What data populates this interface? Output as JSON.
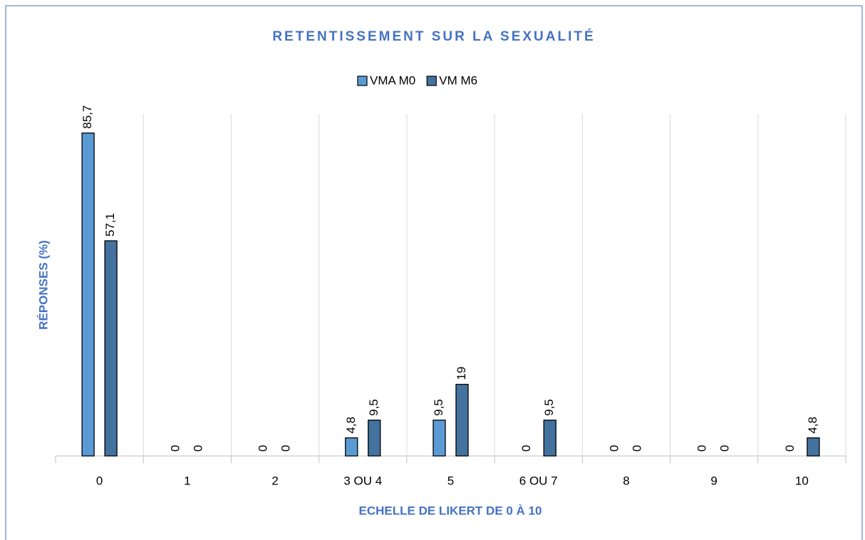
{
  "chart_data": {
    "type": "bar",
    "title": "RETENTISSEMENT SUR LA SEXUALITÉ",
    "x_label": "ECHELLE DE LIKERT  DE 0 À 10",
    "y_label": "RÉPONSES (%)",
    "categories": [
      "0",
      "1",
      "2",
      "3 OU 4",
      "5",
      "6 OU 7",
      "8",
      "9",
      "10"
    ],
    "series": [
      {
        "name": "VMA M0",
        "color": "#5b9bd5",
        "values": [
          85.7,
          0,
          0,
          4.8,
          9.5,
          0,
          0,
          0,
          0
        ],
        "value_labels": [
          "85,7",
          "0",
          "0",
          "4,8",
          "9,5",
          "0",
          "0",
          "0",
          "0"
        ]
      },
      {
        "name": "VM M6",
        "color": "#44729f",
        "values": [
          57.1,
          0,
          0,
          9.5,
          19,
          9.5,
          0,
          0,
          4.8
        ],
        "value_labels": [
          "57,1",
          "0",
          "0",
          "9,5",
          "19",
          "9,5",
          "0",
          "0",
          "4,8"
        ]
      }
    ],
    "ylim": [
      0,
      90
    ],
    "legend": "top"
  }
}
